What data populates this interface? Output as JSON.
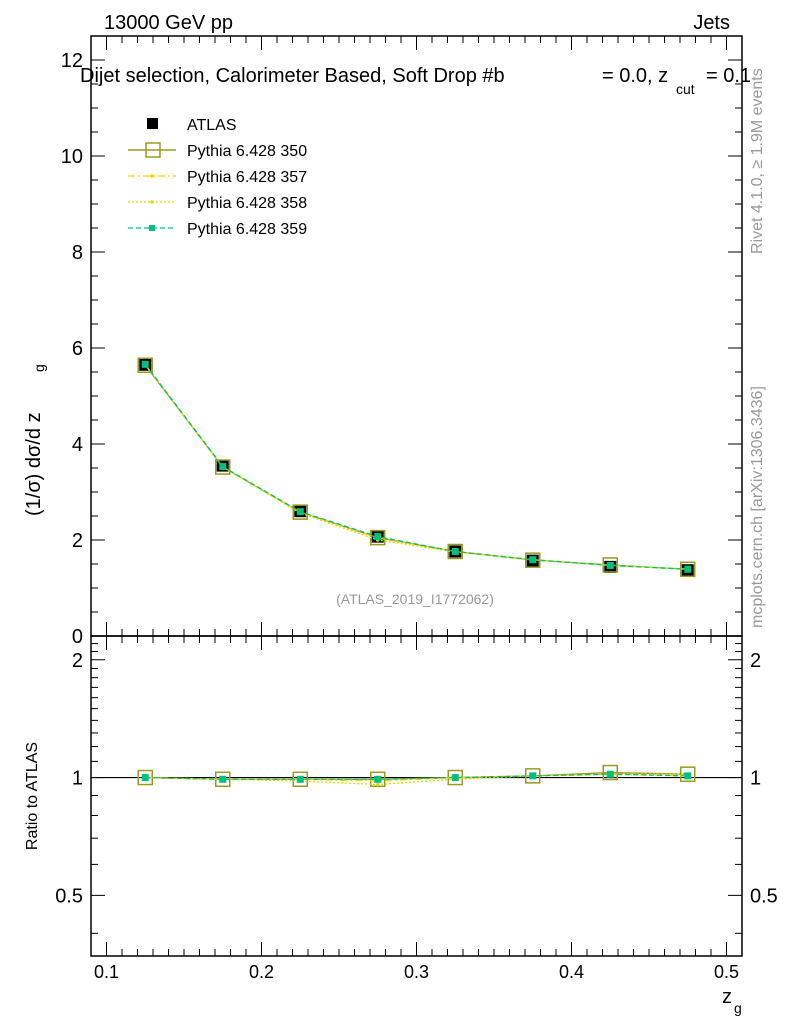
{
  "header": {
    "energy_label": "13000 GeV pp",
    "category_label": "Jets",
    "plot_title": "Dijet selection, Calorimeter Based, Soft Drop #b",
    "title_params_prefix": "= 0.0, z",
    "title_params_sub": "cut",
    "title_params_suffix": " = 0.1",
    "analysis_id": "(ATLAS_2019_I1772062)"
  },
  "side_labels": {
    "rivet": "Rivet 4.1.0, ≥ 1.9M events",
    "mcplots": "mcplots.cern.ch [arXiv:1306.3436]"
  },
  "colors": {
    "atlas": "#000000",
    "p350": "#9a9a22",
    "p357": "#ffcc00",
    "p358": "#d8e000",
    "p359": "#00c080",
    "axis": "#000000",
    "watermark": "#999999"
  },
  "chart_data": [
    {
      "type": "line",
      "panel": "main",
      "ylabel_main": "(1/σ) dσ/d z",
      "ylabel_sub": "g",
      "xlim": [
        0.09,
        0.51
      ],
      "ylim": [
        0,
        12.5
      ],
      "yticks": [
        0,
        2,
        4,
        6,
        8,
        10,
        12
      ],
      "ytick_labels": [
        "0",
        "2",
        "4",
        "6",
        "8",
        "10",
        "12"
      ],
      "x": [
        0.125,
        0.175,
        0.225,
        0.275,
        0.325,
        0.375,
        0.425,
        0.475
      ],
      "series": [
        {
          "name": "ATLAS",
          "key": "atlas",
          "values": [
            5.65,
            3.55,
            2.6,
            2.07,
            1.76,
            1.57,
            1.44,
            1.37
          ]
        },
        {
          "name": "Pythia 6.428 350",
          "key": "p350",
          "values": [
            5.64,
            3.52,
            2.58,
            2.05,
            1.76,
            1.58,
            1.48,
            1.39
          ]
        },
        {
          "name": "Pythia 6.428 357",
          "key": "p357",
          "values": [
            5.65,
            3.52,
            2.58,
            2.04,
            1.76,
            1.59,
            1.47,
            1.39
          ]
        },
        {
          "name": "Pythia 6.428 358",
          "key": "p358",
          "values": [
            5.66,
            3.52,
            2.56,
            2.0,
            1.75,
            1.59,
            1.47,
            1.4
          ]
        },
        {
          "name": "Pythia 6.428 359",
          "key": "p359",
          "values": [
            5.66,
            3.53,
            2.59,
            2.07,
            1.76,
            1.59,
            1.47,
            1.39
          ]
        }
      ]
    },
    {
      "type": "line",
      "panel": "ratio",
      "ylabel": "Ratio to ATLAS",
      "xlabel_main": "z",
      "xlabel_sub": "g",
      "xlim": [
        0.09,
        0.51
      ],
      "ylim": [
        0.35,
        2.3
      ],
      "yticks": [
        0.5,
        1,
        2
      ],
      "ytick_labels": [
        "0.5",
        "1",
        "2"
      ],
      "xticks": [
        0.1,
        0.2,
        0.3,
        0.4,
        0.5
      ],
      "xtick_labels": [
        "0.1",
        "0.2",
        "0.3",
        "0.4",
        "0.5"
      ],
      "x": [
        0.125,
        0.175,
        0.225,
        0.275,
        0.325,
        0.375,
        0.425,
        0.475
      ],
      "series": [
        {
          "name": "Pythia 6.428 350",
          "key": "p350",
          "values": [
            1.0,
            0.99,
            0.99,
            0.99,
            1.0,
            1.01,
            1.03,
            1.02
          ]
        },
        {
          "name": "Pythia 6.428 357",
          "key": "p357",
          "values": [
            1.0,
            0.99,
            0.99,
            0.98,
            1.0,
            1.01,
            1.02,
            1.01
          ]
        },
        {
          "name": "Pythia 6.428 358",
          "key": "p358",
          "values": [
            1.0,
            0.99,
            0.98,
            0.96,
            0.99,
            1.01,
            1.02,
            1.02
          ]
        },
        {
          "name": "Pythia 6.428 359",
          "key": "p359",
          "values": [
            1.0,
            0.99,
            0.99,
            0.99,
            1.0,
            1.01,
            1.02,
            1.01
          ]
        }
      ]
    }
  ]
}
